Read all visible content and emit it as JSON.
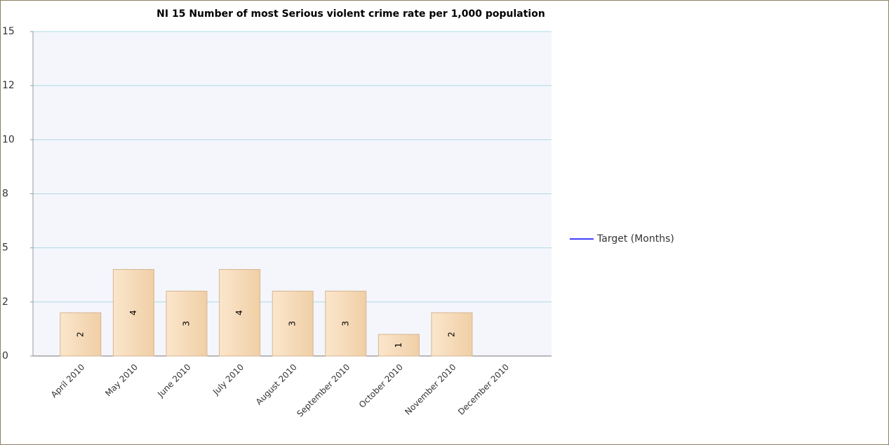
{
  "chart_data": {
    "type": "bar",
    "title": "NI 15 Number of most Serious violent crime rate per 1,000 population",
    "categories": [
      "April 2010",
      "May 2010",
      "June 2010",
      "July 2010",
      "August 2010",
      "September 2010",
      "October 2010",
      "November 2010",
      "December 2010"
    ],
    "values": [
      2,
      4,
      3,
      4,
      3,
      3,
      1,
      2,
      null
    ],
    "color": "#f5d7b2",
    "ylim": [
      0,
      15
    ],
    "yticks": [
      0,
      {
        "value": 2.5,
        "label": "2"
      },
      5,
      {
        "value": 7.5,
        "label": "8"
      },
      10,
      {
        "value": 12.5,
        "label": "12"
      },
      15
    ],
    "grid": true,
    "legend": [
      {
        "name": "Target (Months)",
        "color": "#0000ff"
      }
    ]
  }
}
